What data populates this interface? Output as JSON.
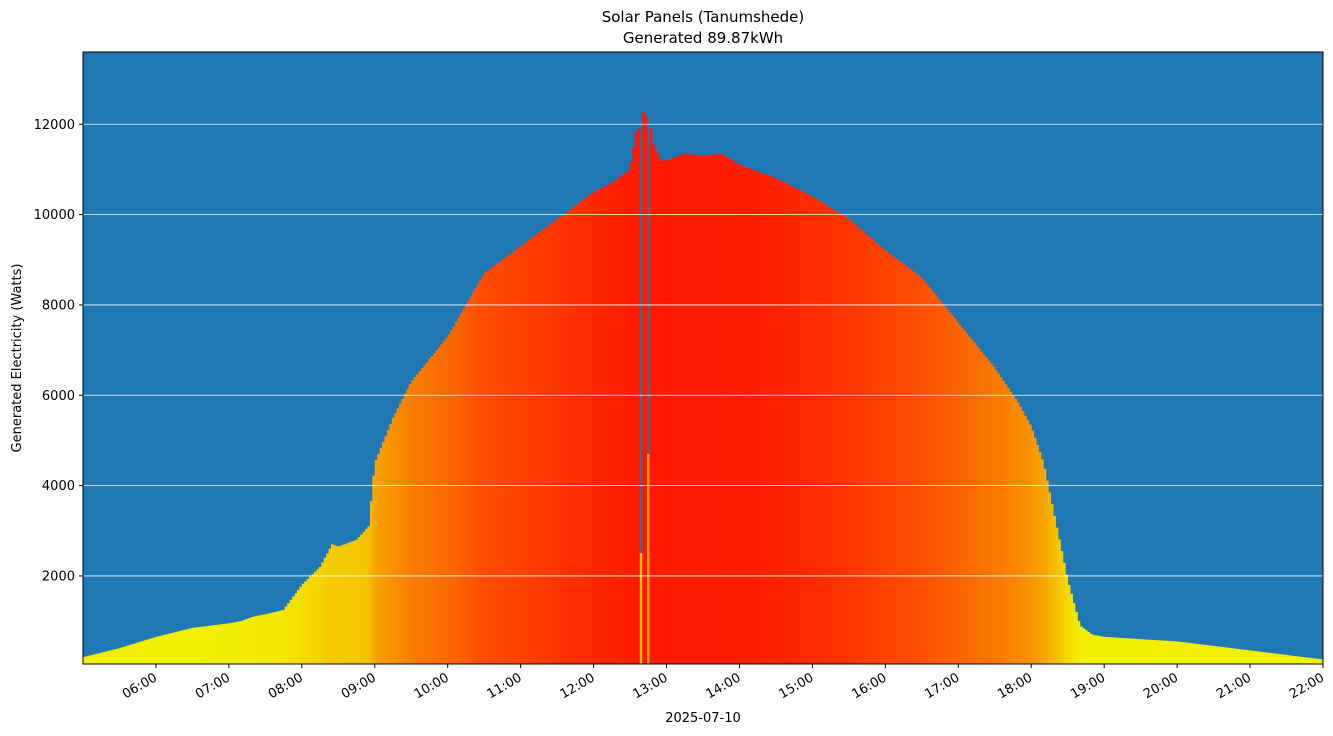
{
  "chart_data": {
    "type": "area",
    "title": "Solar Panels (Tanumshede)",
    "subtitle": "Generated 89.87kWh",
    "xlabel": "2025-07-10",
    "ylabel": "Generated Electricity (Watts)",
    "date": "2025-07-10",
    "xlim": [
      "05:00",
      "22:00"
    ],
    "ylim": [
      50,
      13600
    ],
    "grid": "horizontal",
    "x_ticks": [
      "06:00",
      "07:00",
      "08:00",
      "09:00",
      "10:00",
      "11:00",
      "12:00",
      "13:00",
      "14:00",
      "15:00",
      "16:00",
      "17:00",
      "18:00",
      "19:00",
      "20:00",
      "21:00",
      "22:00"
    ],
    "y_ticks": [
      2000,
      4000,
      6000,
      8000,
      10000,
      12000
    ],
    "colors": {
      "background": "#1f77b4",
      "grid": "#ffffff",
      "low": "#f2f000",
      "high": "#ff1a00"
    },
    "series": [
      {
        "x": [
          "05:00",
          "05:30",
          "06:00",
          "06:30",
          "07:00",
          "07:10",
          "07:20",
          "07:30",
          "07:45",
          "08:00",
          "08:15",
          "08:25",
          "08:30",
          "08:45",
          "08:55",
          "09:00",
          "09:15",
          "09:30",
          "10:00",
          "10:30",
          "11:00",
          "11:30",
          "12:00",
          "12:15",
          "12:30",
          "12:36",
          "12:38",
          "12:39",
          "12:40",
          "12:42",
          "12:44",
          "12:45",
          "12:46",
          "12:47",
          "12:48",
          "12:50",
          "12:55",
          "13:00",
          "13:15",
          "13:30",
          "13:45",
          "14:00",
          "14:30",
          "15:00",
          "15:30",
          "16:00",
          "16:30",
          "17:00",
          "17:30",
          "17:50",
          "18:00",
          "18:10",
          "18:20",
          "18:30",
          "18:40",
          "18:50",
          "19:00",
          "19:30",
          "20:00",
          "20:30",
          "21:00",
          "21:30",
          "22:00"
        ],
        "y": [
          200,
          400,
          650,
          850,
          950,
          1000,
          1100,
          1150,
          1250,
          1800,
          2200,
          2700,
          2650,
          2800,
          3100,
          4500,
          5500,
          6300,
          7300,
          8700,
          9300,
          9900,
          10500,
          10700,
          11000,
          12000,
          11800,
          2500,
          12200,
          12350,
          12000,
          4700,
          12100,
          11900,
          11600,
          11500,
          11200,
          11200,
          11350,
          11300,
          11350,
          11100,
          10800,
          10400,
          9900,
          9200,
          8600,
          7600,
          6600,
          5800,
          5300,
          4500,
          3200,
          1900,
          900,
          700,
          650,
          600,
          550,
          450,
          350,
          250,
          150
        ]
      }
    ]
  }
}
